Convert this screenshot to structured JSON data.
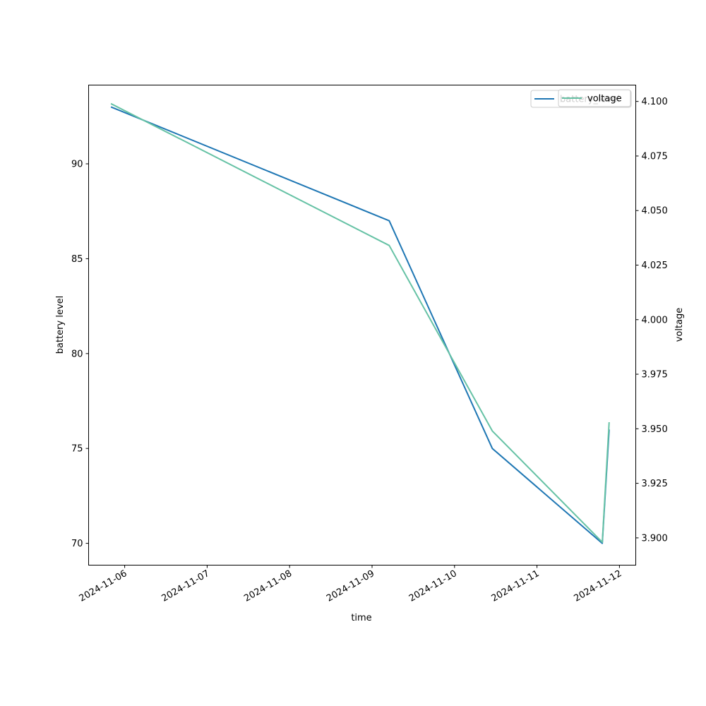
{
  "chart_data": {
    "type": "line",
    "xlabel": "time",
    "x_axis_type": "date",
    "x_ticks": [
      "2024-11-06",
      "2024-11-07",
      "2024-11-08",
      "2024-11-09",
      "2024-11-10",
      "2024-11-11",
      "2024-11-12"
    ],
    "xlim": [
      "2024-11-05T13:30",
      "2024-11-12T04:45"
    ],
    "left_axis": {
      "label": "battery level",
      "ylim": [
        68.85,
        94.15
      ],
      "ticks": [
        70,
        75,
        80,
        85,
        90
      ]
    },
    "right_axis": {
      "label": "voltage",
      "ylim": [
        3.8875,
        4.1075
      ],
      "ticks": [
        3.9,
        3.925,
        3.95,
        3.975,
        4.0,
        4.025,
        4.05,
        4.075,
        4.1
      ]
    },
    "series": [
      {
        "name": "battery_level",
        "axis": "left",
        "color": "#1f77b4",
        "points": [
          {
            "x": "2024-11-05T20:00",
            "y": 93
          },
          {
            "x": "2024-11-09T05:00",
            "y": 87
          },
          {
            "x": "2024-11-10T11:00",
            "y": 75
          },
          {
            "x": "2024-11-11T19:00",
            "y": 70
          },
          {
            "x": "2024-11-11T21:00",
            "y": 76
          }
        ]
      },
      {
        "name": "voltage",
        "axis": "right",
        "color": "#66c2a5",
        "points": [
          {
            "x": "2024-11-05T20:00",
            "y": 4.099
          },
          {
            "x": "2024-11-09T05:00",
            "y": 4.034
          },
          {
            "x": "2024-11-10T11:00",
            "y": 3.949
          },
          {
            "x": "2024-11-11T19:00",
            "y": 3.898
          },
          {
            "x": "2024-11-11T21:00",
            "y": 3.953
          }
        ]
      }
    ],
    "legends": [
      {
        "placement": "top-right",
        "entries": [
          "battery_level"
        ],
        "color": "#1f77b4"
      },
      {
        "placement": "top-right",
        "entries": [
          "voltage"
        ],
        "color": "#66c2a5"
      }
    ],
    "grid": false
  }
}
